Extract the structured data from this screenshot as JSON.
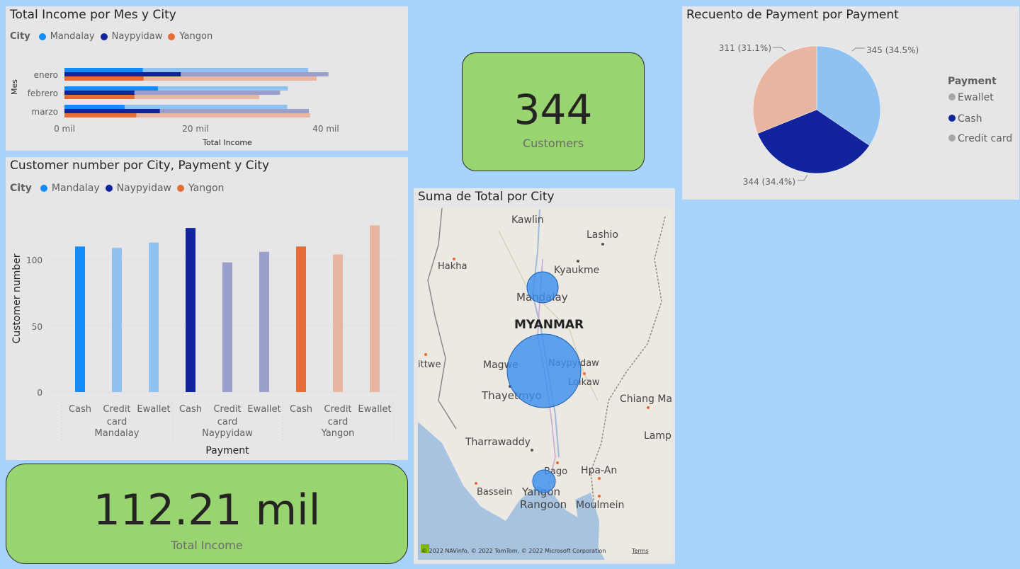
{
  "colors": {
    "mandalay": "#118dff",
    "mandalay_light": "#8fc2f0",
    "naypyidaw": "#12239e",
    "naypyidaw_light": "#9a9fcc",
    "yangon": "#e66c37",
    "yangon_light": "#e8b5a0",
    "card_green": "#98d46f",
    "background": "#a7d3fc"
  },
  "income_chart": {
    "title": "Total Income por Mes y City",
    "legend_title": "City",
    "legend": [
      "Mandalay",
      "Naypyidaw",
      "Yangon"
    ],
    "ylabel": "Mes",
    "xlabel": "Total Income",
    "tick_labels": [
      "0 mil",
      "20 mil",
      "40 mil"
    ]
  },
  "customer_chart": {
    "title": "Customer number por City, Payment y City",
    "legend_title": "City",
    "legend": [
      "Mandalay",
      "Naypyidaw",
      "Yangon"
    ],
    "ylabel": "Customer number",
    "xlabel": "Payment",
    "tick_labels": [
      "0",
      "50",
      "100"
    ]
  },
  "pie_chart": {
    "title": "Recuento de Payment por Payment",
    "legend_title": "Payment",
    "legend": [
      "Ewallet",
      "Cash",
      "Credit card"
    ],
    "labels": [
      "345 (34.5%)",
      "344 (34.4%)",
      "311 (31.1%)"
    ]
  },
  "map": {
    "title": "Suma de Total por City",
    "places": [
      "Kawlin",
      "Lashio",
      "Hakha",
      "Kyaukme",
      "Mandalay",
      "MYANMAR",
      "ittwe",
      "Magwe",
      "Naypyidaw",
      "Loikaw",
      "Thayetmyo",
      "Chiang Ma",
      "Lamp",
      "Tharrawaddy",
      "Bago",
      "Hpa-An",
      "Bassein",
      "Yangon",
      "Rangoon",
      "Moulmein"
    ],
    "copyright": "© 2022 NAVinfo, © 2022 TomTom, © 2022 Microsoft Corporation",
    "terms": "Terms"
  },
  "kpi_customers": {
    "value": "344",
    "label": "Customers"
  },
  "kpi_income": {
    "value": "112.21 mil",
    "label": "Total Income"
  },
  "chart_data": [
    {
      "type": "bar",
      "orientation": "horizontal",
      "title": "Total Income por Mes y City",
      "xlabel": "Total Income",
      "ylabel": "Mes",
      "categories": [
        "enero",
        "febrero",
        "marzo"
      ],
      "xlim": [
        0,
        45000
      ],
      "series": [
        {
          "name": "Mandalay",
          "values": [
            12000,
            14300,
            9200
          ]
        },
        {
          "name": "Naypyidaw",
          "values": [
            17800,
            10700,
            14600
          ]
        },
        {
          "name": "Yangon",
          "values": [
            12100,
            10700,
            11000
          ]
        }
      ],
      "background_series": [
        {
          "name": "Mandalay",
          "values": [
            37300,
            34200,
            34100
          ]
        },
        {
          "name": "Naypyidaw",
          "values": [
            40400,
            33000,
            37400
          ]
        },
        {
          "name": "Yangon",
          "values": [
            38600,
            29800,
            37600
          ]
        }
      ],
      "legend": "top-left"
    },
    {
      "type": "bar",
      "title": "Customer number por City, Payment y City",
      "xlabel": "Payment",
      "ylabel": "Customer number",
      "groups": [
        "Mandalay",
        "Naypyidaw",
        "Yangon"
      ],
      "categories": [
        "Cash",
        "Credit card",
        "Ewallet"
      ],
      "ylim": [
        0,
        130
      ],
      "series": [
        {
          "name": "Mandalay",
          "values": [
            110,
            109,
            113
          ]
        },
        {
          "name": "Naypyidaw",
          "values": [
            124,
            98,
            106
          ]
        },
        {
          "name": "Yangon",
          "values": [
            110,
            104,
            126
          ]
        }
      ],
      "legend": "top-left"
    },
    {
      "type": "pie",
      "title": "Recuento de Payment por Payment",
      "categories": [
        "Ewallet",
        "Cash",
        "Credit card"
      ],
      "values": [
        345,
        344,
        311
      ],
      "percent": [
        34.5,
        34.4,
        31.1
      ],
      "legend": "right"
    }
  ]
}
